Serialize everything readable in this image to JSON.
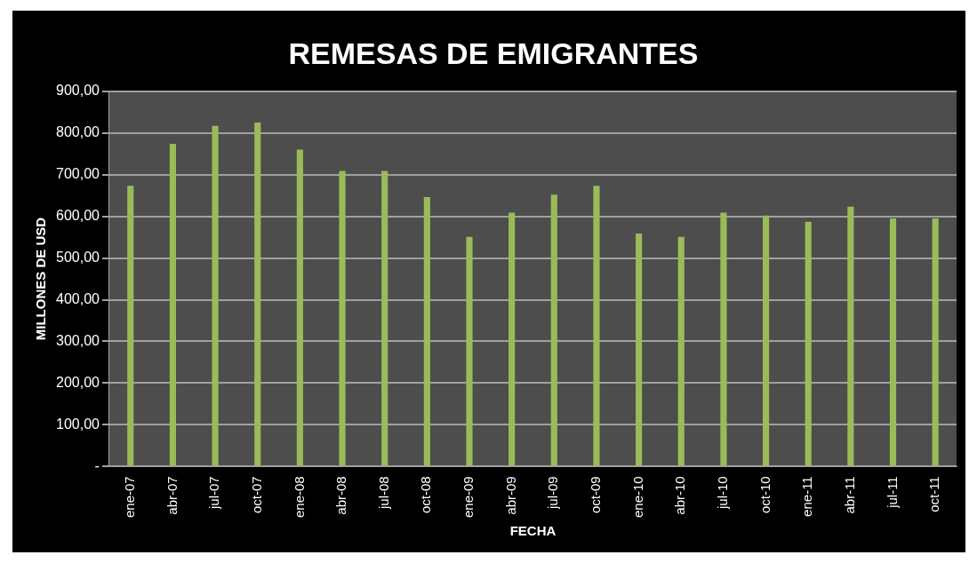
{
  "chart_data": {
    "type": "bar",
    "title": "REMESAS DE EMIGRANTES",
    "xlabel": "FECHA",
    "ylabel": "MILLONES DE USD",
    "categories": [
      "ene-07",
      "abr-07",
      "jul-07",
      "oct-07",
      "ene-08",
      "abr-08",
      "jul-08",
      "oct-08",
      "ene-09",
      "abr-09",
      "jul-09",
      "oct-09",
      "ene-10",
      "abr-10",
      "jul-10",
      "oct-10",
      "ene-11",
      "abr-11",
      "jul-11",
      "oct-11"
    ],
    "values": [
      673,
      774,
      817,
      825,
      760,
      709,
      709,
      646,
      551,
      609,
      652,
      673,
      559,
      551,
      609,
      602,
      587,
      623,
      595,
      595
    ],
    "color": "#9bbb59",
    "ylim": [
      0,
      900
    ],
    "yticks": [
      {
        "value": 0,
        "label": "-"
      },
      {
        "value": 100,
        "label": "100,00"
      },
      {
        "value": 200,
        "label": "200,00"
      },
      {
        "value": 300,
        "label": "300,00"
      },
      {
        "value": 400,
        "label": "400,00"
      },
      {
        "value": 500,
        "label": "500,00"
      },
      {
        "value": 600,
        "label": "600,00"
      },
      {
        "value": 700,
        "label": "700,00"
      },
      {
        "value": 800,
        "label": "800,00"
      },
      {
        "value": 900,
        "label": "900,00"
      }
    ],
    "grid": "y"
  }
}
